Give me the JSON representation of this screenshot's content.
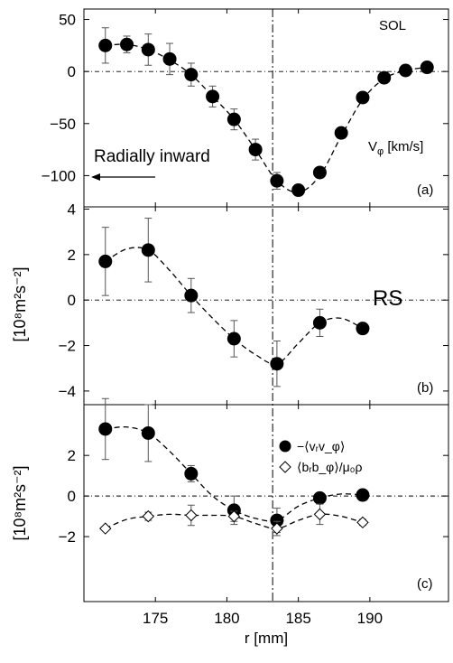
{
  "xaxis": {
    "label": "r [mm]",
    "ticks": [
      175,
      180,
      185,
      190
    ],
    "lim": [
      170,
      195.5
    ]
  },
  "separatrix_r": 183.2,
  "chart_data": [
    {
      "type": "scatter",
      "panel": "(a)",
      "ylabel": "",
      "ylim": [
        -130,
        60
      ],
      "yticks": [
        50,
        0,
        -50,
        -100
      ],
      "zero_line": true,
      "texts": {
        "region": "SOL",
        "quantity": "V",
        "quantity_sub": "φ",
        "quantity_unit": " [km/s]",
        "arrow_label": "Radially inward"
      },
      "series": [
        {
          "marker": "filled-circle",
          "points": [
            {
              "x": 171.5,
              "y": 25,
              "err": 17
            },
            {
              "x": 173.0,
              "y": 26,
              "err": 8
            },
            {
              "x": 174.5,
              "y": 21,
              "err": 15
            },
            {
              "x": 176.0,
              "y": 12,
              "err": 15
            },
            {
              "x": 177.5,
              "y": -3,
              "err": 11
            },
            {
              "x": 179.0,
              "y": -24,
              "err": 10
            },
            {
              "x": 180.5,
              "y": -46,
              "err": 10
            },
            {
              "x": 182.0,
              "y": -75,
              "err": 10
            },
            {
              "x": 183.5,
              "y": -105,
              "err": 8
            },
            {
              "x": 185.0,
              "y": -114,
              "err": 5
            },
            {
              "x": 186.5,
              "y": -97,
              "err": 0
            },
            {
              "x": 188.0,
              "y": -59,
              "err": 0
            },
            {
              "x": 189.5,
              "y": -25,
              "err": 0
            },
            {
              "x": 191.0,
              "y": -6,
              "err": 0
            },
            {
              "x": 192.5,
              "y": 1,
              "err": 0
            },
            {
              "x": 194.0,
              "y": 4,
              "err": 0
            }
          ],
          "fit": [
            [
              171.5,
              25
            ],
            [
              173,
              26
            ],
            [
              174.5,
              21
            ],
            [
              176,
              11
            ],
            [
              177.5,
              -3
            ],
            [
              179,
              -24
            ],
            [
              180.5,
              -46
            ],
            [
              182,
              -75
            ],
            [
              183.5,
              -105
            ],
            [
              185,
              -116
            ],
            [
              186.5,
              -100
            ],
            [
              188,
              -62
            ],
            [
              189.5,
              -27
            ],
            [
              191,
              -7
            ],
            [
              192.5,
              1
            ],
            [
              194,
              4
            ]
          ]
        }
      ]
    },
    {
      "type": "scatter",
      "panel": "(b)",
      "ylabel": "[10⁸m²s⁻²]",
      "ylim": [
        -4.6,
        4.1
      ],
      "yticks": [
        4,
        2,
        0,
        -2,
        -4
      ],
      "zero_line": true,
      "texts": {
        "label": "RS"
      },
      "series": [
        {
          "marker": "filled-circle",
          "points": [
            {
              "x": 171.5,
              "y": 1.7,
              "err": 1.5
            },
            {
              "x": 174.5,
              "y": 2.2,
              "err": 1.4
            },
            {
              "x": 177.5,
              "y": 0.2,
              "err": 0.75
            },
            {
              "x": 180.5,
              "y": -1.7,
              "err": 0.8
            },
            {
              "x": 183.5,
              "y": -2.8,
              "err": 1.0
            },
            {
              "x": 186.5,
              "y": -1.0,
              "err": 0.6
            },
            {
              "x": 189.5,
              "y": -1.25,
              "err": 0
            }
          ],
          "fit": [
            [
              171.5,
              1.7
            ],
            [
              173,
              2.25
            ],
            [
              174.5,
              2.2
            ],
            [
              176,
              1.3
            ],
            [
              177.5,
              0.2
            ],
            [
              179,
              -0.8
            ],
            [
              180.5,
              -1.7
            ],
            [
              182,
              -2.4
            ],
            [
              183.5,
              -2.8
            ],
            [
              185,
              -1.9
            ],
            [
              186.5,
              -1.0
            ],
            [
              188,
              -0.8
            ],
            [
              189.5,
              -1.25
            ]
          ]
        }
      ]
    },
    {
      "type": "scatter",
      "panel": "(c)",
      "ylabel": "[10⁸m²s⁻²]",
      "ylim": [
        -5.2,
        4.5
      ],
      "yticks": [
        2,
        0,
        -2
      ],
      "zero_line": true,
      "legend_position": "top-center",
      "series": [
        {
          "name": "−⟨vᵣv_φ⟩",
          "marker": "filled-circle",
          "points": [
            {
              "x": 171.5,
              "y": 3.3,
              "err": 1.5
            },
            {
              "x": 174.5,
              "y": 3.1,
              "err": 1.4
            },
            {
              "x": 177.5,
              "y": 1.1,
              "err": 0.4
            },
            {
              "x": 180.5,
              "y": -0.7,
              "err": 0.7
            },
            {
              "x": 183.5,
              "y": -1.2,
              "err": 0.6
            },
            {
              "x": 186.5,
              "y": -0.1,
              "err": 0
            },
            {
              "x": 189.5,
              "y": 0.05,
              "err": 0
            }
          ],
          "fit": [
            [
              171.5,
              3.3
            ],
            [
              173,
              3.4
            ],
            [
              174.5,
              3.1
            ],
            [
              176,
              2.2
            ],
            [
              177.5,
              1.1
            ],
            [
              179,
              0.0
            ],
            [
              180.5,
              -0.7
            ],
            [
              182,
              -1.1
            ],
            [
              183.5,
              -1.2
            ],
            [
              185,
              -0.5
            ],
            [
              186.5,
              -0.1
            ],
            [
              188,
              0.1
            ],
            [
              189.5,
              0.05
            ]
          ]
        },
        {
          "name": "⟨bᵣb_φ⟩/μ₀ρ",
          "marker": "open-diamond",
          "points": [
            {
              "x": 171.5,
              "y": -1.6,
              "err": 0
            },
            {
              "x": 174.5,
              "y": -1.0,
              "err": 0.2
            },
            {
              "x": 177.5,
              "y": -0.95,
              "err": 0.5
            },
            {
              "x": 180.5,
              "y": -1.0,
              "err": 0.25
            },
            {
              "x": 183.5,
              "y": -1.6,
              "err": 0.35
            },
            {
              "x": 186.5,
              "y": -0.9,
              "err": 0.5
            },
            {
              "x": 189.5,
              "y": -1.3,
              "err": 0.15
            }
          ],
          "fit": [
            [
              171.5,
              -1.6
            ],
            [
              173,
              -1.15
            ],
            [
              174.5,
              -1.0
            ],
            [
              176,
              -0.9
            ],
            [
              177.5,
              -0.95
            ],
            [
              179,
              -0.95
            ],
            [
              180.5,
              -1.0
            ],
            [
              182,
              -1.35
            ],
            [
              183.5,
              -1.6
            ],
            [
              185,
              -1.2
            ],
            [
              186.5,
              -0.9
            ],
            [
              188,
              -1.0
            ],
            [
              189.5,
              -1.3
            ]
          ]
        }
      ]
    }
  ]
}
